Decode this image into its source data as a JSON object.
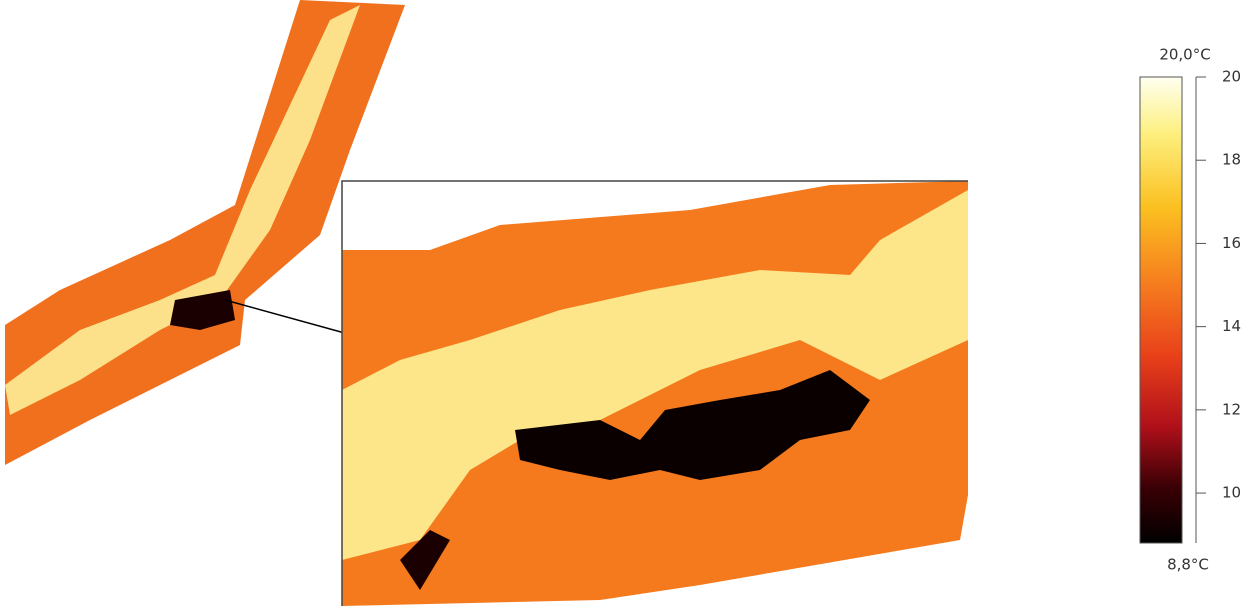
{
  "colorbar": {
    "max": {
      "value": 20.0,
      "label": "20,0°C"
    },
    "min": {
      "value": 8.8,
      "label": "8,8°C"
    },
    "ticks": [
      10,
      12,
      14,
      16,
      18,
      20
    ]
  }
}
